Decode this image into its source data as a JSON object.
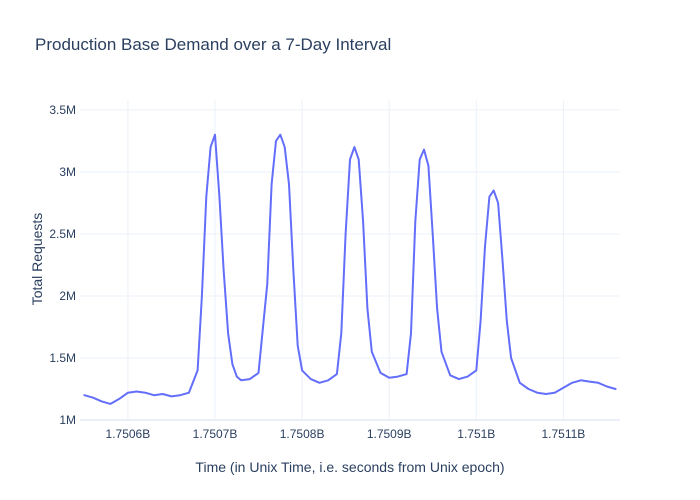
{
  "chart_data": {
    "type": "line",
    "title": "Production Base Demand over a 7-Day Interval",
    "xlabel": "Time (in Unix Time, i.e. seconds from Unix epoch)",
    "ylabel": "Total Requests",
    "xlim": [
      1750545000,
      1751165000
    ],
    "ylim": [
      1000000,
      3580000
    ],
    "x_ticks": [
      {
        "value": 1750600000,
        "label": "1.7506B"
      },
      {
        "value": 1750700000,
        "label": "1.7507B"
      },
      {
        "value": 1750800000,
        "label": "1.7508B"
      },
      {
        "value": 1750900000,
        "label": "1.7509B"
      },
      {
        "value": 1751000000,
        "label": "1.751B"
      },
      {
        "value": 1751100000,
        "label": "1.7511B"
      }
    ],
    "y_ticks": [
      {
        "value": 1000000,
        "label": "1M"
      },
      {
        "value": 1500000,
        "label": "1.5M"
      },
      {
        "value": 2000000,
        "label": "2M"
      },
      {
        "value": 2500000,
        "label": "2.5M"
      },
      {
        "value": 3000000,
        "label": "3M"
      },
      {
        "value": 3500000,
        "label": "3.5M"
      }
    ],
    "grid": true,
    "legend": "none",
    "series": [
      {
        "color": "#636efa",
        "x": [
          1750550000,
          1750560000,
          1750570000,
          1750580000,
          1750590000,
          1750600000,
          1750610000,
          1750620000,
          1750630000,
          1750640000,
          1750650000,
          1750660000,
          1750670000,
          1750680000,
          1750685000,
          1750690000,
          1750695000,
          1750700000,
          1750705000,
          1750710000,
          1750715000,
          1750720000,
          1750725000,
          1750730000,
          1750740000,
          1750750000,
          1750760000,
          1750765000,
          1750770000,
          1750775000,
          1750780000,
          1750785000,
          1750790000,
          1750795000,
          1750800000,
          1750810000,
          1750820000,
          1750830000,
          1750840000,
          1750845000,
          1750850000,
          1750855000,
          1750860000,
          1750865000,
          1750870000,
          1750875000,
          1750880000,
          1750890000,
          1750900000,
          1750910000,
          1750920000,
          1750925000,
          1750930000,
          1750935000,
          1750940000,
          1750945000,
          1750950000,
          1750955000,
          1750960000,
          1750970000,
          1750980000,
          1750990000,
          1751000000,
          1751005000,
          1751010000,
          1751015000,
          1751020000,
          1751025000,
          1751030000,
          1751035000,
          1751040000,
          1751050000,
          1751060000,
          1751070000,
          1751080000,
          1751090000,
          1751100000,
          1751110000,
          1751120000,
          1751130000,
          1751140000,
          1751150000,
          1751160000
        ],
        "y": [
          1200000,
          1180000,
          1150000,
          1130000,
          1170000,
          1220000,
          1230000,
          1220000,
          1200000,
          1210000,
          1190000,
          1200000,
          1220000,
          1400000,
          2000000,
          2800000,
          3200000,
          3300000,
          2800000,
          2200000,
          1700000,
          1450000,
          1350000,
          1320000,
          1330000,
          1380000,
          2100000,
          2900000,
          3250000,
          3300000,
          3200000,
          2900000,
          2200000,
          1600000,
          1400000,
          1330000,
          1300000,
          1320000,
          1370000,
          1700000,
          2500000,
          3100000,
          3200000,
          3100000,
          2600000,
          1900000,
          1550000,
          1380000,
          1340000,
          1350000,
          1370000,
          1700000,
          2600000,
          3100000,
          3180000,
          3050000,
          2500000,
          1900000,
          1550000,
          1360000,
          1330000,
          1350000,
          1400000,
          1800000,
          2400000,
          2800000,
          2850000,
          2750000,
          2300000,
          1800000,
          1500000,
          1300000,
          1250000,
          1220000,
          1210000,
          1220000,
          1260000,
          1300000,
          1320000,
          1310000,
          1300000,
          1270000,
          1250000
        ]
      }
    ]
  }
}
